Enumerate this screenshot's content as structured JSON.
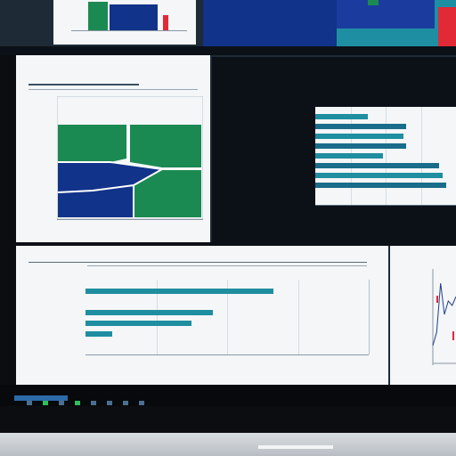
{
  "colors": {
    "bezel": "#0b0d10",
    "screen_bg": "#1e2a36",
    "panel_light": "#f4f6f8",
    "panel_dark": "#0c1117",
    "green": "#1b8a52",
    "navy": "#12338a",
    "teal": "#1e8fa3",
    "red": "#e12a36",
    "taskbar": "#07090c"
  },
  "icons": {
    "taskbar": [
      "window-icon",
      "terminal-icon",
      "browser-icon",
      "files-icon",
      "chart-icon",
      "settings-icon",
      "mail-icon",
      "grid-icon"
    ]
  },
  "top_left_chart": {
    "bars": [
      {
        "value": 0.95,
        "color": "#1b8a52"
      },
      {
        "value": 0.85,
        "color": "#12338a"
      },
      {
        "value": 0.5,
        "color": "#e12a36"
      }
    ]
  },
  "top_right_chart": {
    "bands": [
      0.35,
      0.7,
      1.0
    ]
  },
  "mid_left_chart": {
    "type": "area"
  },
  "dark_bar_chart": {
    "type": "bar",
    "values": [
      52,
      90,
      88,
      90,
      67,
      123,
      127,
      130
    ]
  },
  "bottom_bar_chart": {
    "type": "bar",
    "values": [
      78,
      0,
      53,
      44,
      11,
      0
    ]
  },
  "bottom_right_chart": {
    "type": "line",
    "values": [
      0.2,
      0.35,
      0.9,
      0.55,
      0.7,
      0.65,
      0.75
    ]
  }
}
